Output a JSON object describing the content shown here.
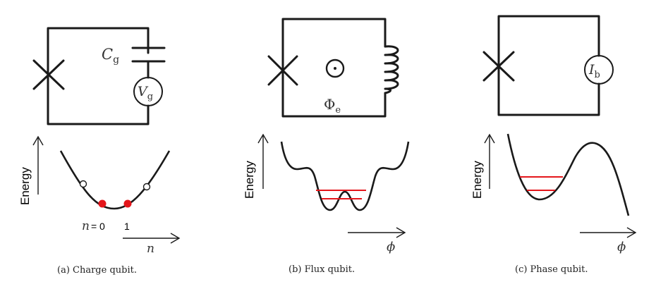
{
  "panels": [
    {
      "caption": "(a) Charge qubit.",
      "cap_symbol": "C",
      "cap_sub": "g",
      "source_symbol": "V",
      "source_sub": "g",
      "energy_label": "Energy",
      "n_eq": "n",
      "n_eq_rest": "= 0",
      "n_one": "1",
      "x_label": "n"
    },
    {
      "caption": "(b) Flux qubit.",
      "flux_symbol": "Φ",
      "flux_sub": "e",
      "energy_label": "Energy",
      "x_label": "ϕ"
    },
    {
      "caption": "(c) Phase qubit.",
      "source_symbol": "I",
      "source_sub": "b",
      "energy_label": "Energy",
      "x_label": "ϕ"
    }
  ],
  "colors": {
    "line": "#1a1a1a",
    "level": "#e4161b",
    "state_filled": "#e4161b",
    "state_open": "#ffffff"
  }
}
